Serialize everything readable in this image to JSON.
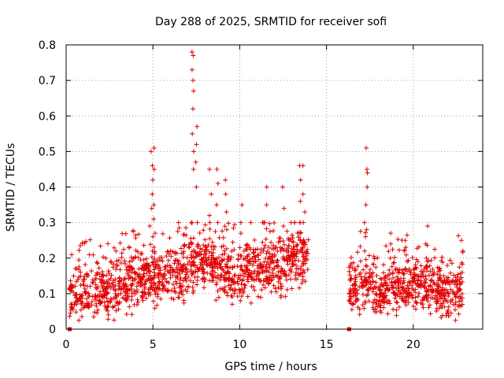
{
  "chart_data": {
    "type": "scatter",
    "title": "Day 288 of 2025, SRMTID for receiver sofi",
    "xlabel": "GPS time / hours",
    "ylabel": "SRMTID / TECUs",
    "xlim": [
      0,
      24
    ],
    "ylim": [
      0,
      0.8
    ],
    "xticks": [
      0,
      5,
      10,
      15,
      20
    ],
    "xtick_labels": [
      "0",
      "5",
      "10",
      "15",
      "20"
    ],
    "yticks": [
      0,
      0.1,
      0.2,
      0.3,
      0.4,
      0.5,
      0.6,
      0.7,
      0.8
    ],
    "ytick_labels": [
      "0",
      "0.1",
      "0.2",
      "0.3",
      "0.4",
      "0.5",
      "0.6",
      "0.7",
      "0.8"
    ],
    "grid": true,
    "marker": "+",
    "color": "#e00000",
    "zero_markers": [
      {
        "x": 0.2,
        "y": 0
      },
      {
        "x": 16.3,
        "y": 0
      }
    ],
    "series": [
      {
        "name": "SRMTID",
        "segments": [
          {
            "start": 0.2,
            "end": 13.95
          },
          {
            "start": 16.3,
            "end": 22.85
          }
        ],
        "baseline": [
          [
            0.2,
            0.09
          ],
          [
            1,
            0.1
          ],
          [
            2,
            0.11
          ],
          [
            3,
            0.12
          ],
          [
            4,
            0.13
          ],
          [
            5,
            0.15
          ],
          [
            6,
            0.16
          ],
          [
            7,
            0.17
          ],
          [
            8,
            0.19
          ],
          [
            9,
            0.17
          ],
          [
            10,
            0.15
          ],
          [
            11,
            0.17
          ],
          [
            12,
            0.18
          ],
          [
            13,
            0.2
          ],
          [
            13.95,
            0.22
          ],
          [
            16.3,
            0.12
          ],
          [
            17,
            0.13
          ],
          [
            18,
            0.11
          ],
          [
            19,
            0.12
          ],
          [
            20,
            0.13
          ],
          [
            21,
            0.12
          ],
          [
            22,
            0.1
          ],
          [
            22.85,
            0.13
          ]
        ],
        "spikes": [
          {
            "x": 4.95,
            "values": [
              0.34,
              0.38,
              0.42,
              0.46,
              0.5
            ]
          },
          {
            "x": 5.05,
            "values": [
              0.31,
              0.35,
              0.45,
              0.51
            ]
          },
          {
            "x": 7.3,
            "values": [
              0.45,
              0.5,
              0.55,
              0.62,
              0.67,
              0.7,
              0.73,
              0.77,
              0.78
            ]
          },
          {
            "x": 7.5,
            "values": [
              0.4,
              0.47,
              0.52,
              0.57
            ]
          },
          {
            "x": 8.3,
            "values": [
              0.32,
              0.38,
              0.45
            ]
          },
          {
            "x": 8.7,
            "values": [
              0.3,
              0.35,
              0.41,
              0.45
            ]
          },
          {
            "x": 9.2,
            "values": [
              0.28,
              0.33,
              0.38,
              0.42
            ]
          },
          {
            "x": 10.1,
            "values": [
              0.27,
              0.3,
              0.35
            ]
          },
          {
            "x": 11.5,
            "values": [
              0.3,
              0.35,
              0.4
            ]
          },
          {
            "x": 12.5,
            "values": [
              0.29,
              0.34,
              0.4
            ]
          },
          {
            "x": 13.5,
            "values": [
              0.3,
              0.36,
              0.42,
              0.46
            ]
          },
          {
            "x": 13.7,
            "values": [
              0.33,
              0.38,
              0.46
            ]
          },
          {
            "x": 17.3,
            "values": [
              0.28,
              0.35,
              0.4,
              0.44,
              0.45,
              0.51
            ]
          },
          {
            "x": 17.2,
            "values": [
              0.22,
              0.26,
              0.3
            ]
          },
          {
            "x": 18.7,
            "values": [
              0.2,
              0.24,
              0.27
            ]
          },
          {
            "x": 19.5,
            "values": [
              0.22,
              0.25
            ]
          },
          {
            "x": 20.8,
            "values": [
              0.2,
              0.29
            ]
          },
          {
            "x": 22.8,
            "values": [
              0.22,
              0.25
            ]
          }
        ],
        "points_per_hour": 95
      }
    ]
  }
}
